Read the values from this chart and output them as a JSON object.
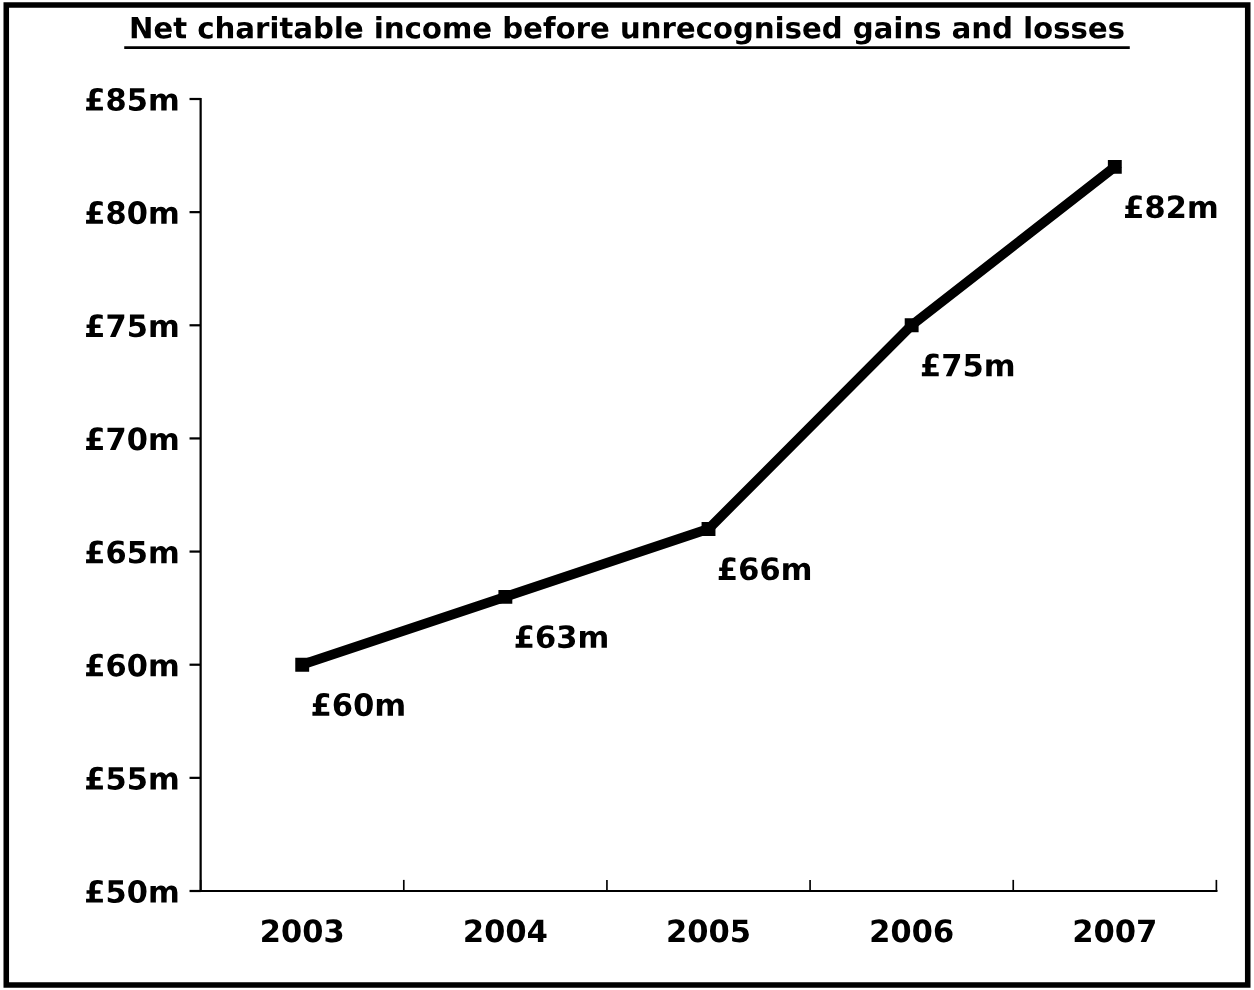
{
  "chart_data": {
    "type": "line",
    "title": "Net charitable income before unrecognised gains and losses",
    "categories": [
      "2003",
      "2004",
      "2005",
      "2006",
      "2007"
    ],
    "series": [
      {
        "color": "#000000",
        "values": [
          60,
          63,
          66,
          75,
          82
        ],
        "value_labels": [
          "£60m",
          "£63m",
          "£66m",
          "£75m",
          "£82m"
        ]
      }
    ],
    "ylim": [
      50,
      85
    ],
    "yticks": [
      {
        "value": 50,
        "label": "£50m"
      },
      {
        "value": 55,
        "label": "£55m"
      },
      {
        "value": 60,
        "label": "£60m"
      },
      {
        "value": 65,
        "label": "£65m"
      },
      {
        "value": 70,
        "label": "£70m"
      },
      {
        "value": 75,
        "label": "£75m"
      },
      {
        "value": 80,
        "label": "£80m"
      },
      {
        "value": 85,
        "label": "£85m"
      }
    ],
    "marker": "square",
    "line_style": "solid",
    "grid": false,
    "legend": false
  }
}
